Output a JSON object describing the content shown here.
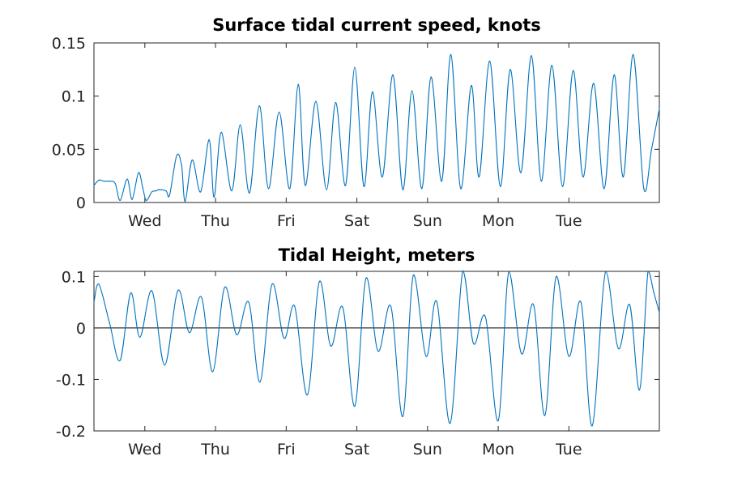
{
  "chart_data": [
    {
      "type": "line",
      "title": "Surface tidal current speed, knots",
      "xlabel": "",
      "ylabel": "",
      "x_tick_labels": [
        "Wed",
        "Thu",
        "Fri",
        "Sat",
        "Sun",
        "Mon",
        "Tue"
      ],
      "x_tick_days": [
        1,
        2,
        3,
        4,
        5,
        6,
        7
      ],
      "xlim_days": [
        0.28,
        8.28
      ],
      "ylim": [
        0,
        0.15
      ],
      "y_ticks": [
        0,
        0.05,
        0.1,
        0.15
      ],
      "y_tick_labels": [
        "0",
        "0.05",
        "0.1",
        "0.15"
      ],
      "grid": false,
      "color": "#0072bd",
      "series": [
        {
          "x_days": [
            0.28,
            0.35,
            0.42,
            0.5,
            0.58,
            0.65,
            0.75,
            0.82,
            0.91,
            0.97,
            1.02,
            1.1,
            1.16,
            1.2,
            1.3,
            1.35,
            1.45,
            1.52,
            1.57,
            1.67,
            1.79,
            1.91,
            1.98,
            2.08,
            2.23,
            2.35,
            2.48,
            2.62,
            2.75,
            2.9,
            3.05,
            3.17,
            3.27,
            3.42,
            3.57,
            3.7,
            3.84,
            3.97,
            4.1,
            4.22,
            4.36,
            4.51,
            4.65,
            4.78,
            4.92,
            5.05,
            5.2,
            5.33,
            5.47,
            5.62,
            5.73,
            5.88,
            6.03,
            6.17,
            6.32,
            6.47,
            6.61,
            6.76,
            6.91,
            7.06,
            7.2,
            7.35,
            7.5,
            7.64,
            7.77,
            7.91,
            8.06,
            8.17,
            8.28
          ],
          "values": [
            0.016,
            0.021,
            0.02,
            0.02,
            0.018,
            0.002,
            0.022,
            0.003,
            0.028,
            0.014,
            0.002,
            0.01,
            0.011,
            0.012,
            0.011,
            0.007,
            0.044,
            0.035,
            0.001,
            0.04,
            0.01,
            0.059,
            0.005,
            0.066,
            0.011,
            0.073,
            0.009,
            0.091,
            0.013,
            0.085,
            0.013,
            0.111,
            0.016,
            0.095,
            0.012,
            0.094,
            0.016,
            0.127,
            0.015,
            0.104,
            0.024,
            0.12,
            0.012,
            0.105,
            0.013,
            0.118,
            0.02,
            0.139,
            0.013,
            0.11,
            0.024,
            0.133,
            0.015,
            0.125,
            0.028,
            0.138,
            0.02,
            0.129,
            0.015,
            0.124,
            0.024,
            0.112,
            0.013,
            0.12,
            0.024,
            0.139,
            0.013,
            0.05,
            0.088
          ]
        }
      ]
    },
    {
      "type": "line",
      "title": "Tidal Height, meters",
      "xlabel": "",
      "ylabel": "",
      "x_tick_labels": [
        "Wed",
        "Thu",
        "Fri",
        "Sat",
        "Sun",
        "Mon",
        "Tue"
      ],
      "x_tick_days": [
        1,
        2,
        3,
        4,
        5,
        6,
        7
      ],
      "xlim_days": [
        0.28,
        8.28
      ],
      "ylim": [
        -0.2,
        0.11
      ],
      "y_ticks": [
        -0.2,
        -0.1,
        0,
        0.1
      ],
      "y_tick_labels": [
        "-0.2",
        "-0.1",
        "0",
        "0.1"
      ],
      "zero_line": true,
      "grid": false,
      "color": "#0072bd",
      "series": [
        {
          "x_days": [
            0.28,
            0.35,
            0.5,
            0.65,
            0.8,
            0.93,
            1.1,
            1.28,
            1.47,
            1.63,
            1.8,
            1.96,
            2.13,
            2.3,
            2.47,
            2.63,
            2.8,
            2.97,
            3.12,
            3.3,
            3.47,
            3.63,
            3.8,
            3.97,
            4.13,
            4.3,
            4.48,
            4.65,
            4.8,
            4.98,
            5.13,
            5.32,
            5.5,
            5.65,
            5.82,
            6.0,
            6.15,
            6.33,
            6.5,
            6.66,
            6.82,
            7.0,
            7.17,
            7.33,
            7.52,
            7.7,
            7.86,
            8.0,
            8.12,
            8.2,
            8.28
          ],
          "values": [
            0.05,
            0.085,
            0.01,
            -0.063,
            0.068,
            -0.018,
            0.072,
            -0.072,
            0.073,
            -0.009,
            0.06,
            -0.085,
            0.079,
            -0.013,
            0.05,
            -0.105,
            0.085,
            -0.02,
            0.042,
            -0.13,
            0.09,
            -0.035,
            0.04,
            -0.152,
            0.097,
            -0.045,
            0.042,
            -0.172,
            0.103,
            -0.055,
            0.051,
            -0.185,
            0.111,
            -0.03,
            0.021,
            -0.18,
            0.11,
            -0.05,
            0.045,
            -0.17,
            0.1,
            -0.055,
            0.05,
            -0.19,
            0.11,
            -0.04,
            0.045,
            -0.12,
            0.11,
            0.07,
            0.03
          ]
        }
      ]
    }
  ]
}
